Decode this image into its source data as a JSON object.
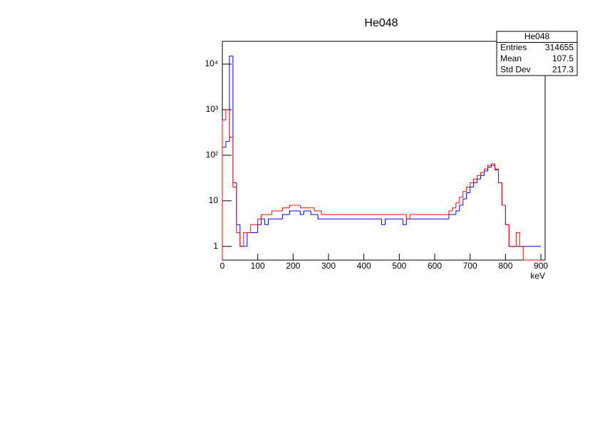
{
  "chart_data": {
    "type": "histogram",
    "title": "He048",
    "x_label": "keV",
    "log_y": true,
    "bins": [
      0,
      10,
      20,
      30,
      40,
      50,
      60,
      70,
      80,
      90,
      100,
      110,
      120,
      130,
      140,
      150,
      160,
      170,
      180,
      190,
      200,
      210,
      220,
      230,
      240,
      250,
      260,
      270,
      280,
      290,
      300,
      310,
      320,
      330,
      340,
      350,
      360,
      370,
      380,
      390,
      400,
      410,
      420,
      430,
      440,
      450,
      460,
      470,
      480,
      490,
      500,
      510,
      520,
      530,
      540,
      550,
      560,
      570,
      580,
      590,
      600,
      610,
      620,
      630,
      640,
      650,
      660,
      670,
      680,
      690,
      700,
      710,
      720,
      730,
      740,
      750,
      760,
      770,
      780,
      790,
      800,
      810,
      820,
      830,
      840,
      850,
      860,
      870,
      880,
      890,
      900
    ],
    "series": [
      {
        "color": "#0000ff",
        "values": [
          150,
          200,
          15000,
          25,
          3,
          1,
          1,
          2,
          2,
          2,
          3,
          4,
          3,
          4,
          4,
          4,
          4,
          5,
          5,
          6,
          6,
          6,
          5,
          6,
          6,
          5,
          5,
          4,
          4,
          4,
          4,
          4,
          4,
          4,
          4,
          4,
          4,
          4,
          4,
          4,
          4,
          4,
          4,
          4,
          4,
          3,
          4,
          4,
          4,
          4,
          4,
          3,
          4,
          4,
          4,
          4,
          4,
          4,
          4,
          4,
          4,
          4,
          4,
          4,
          5,
          5,
          6,
          8,
          11,
          15,
          20,
          25,
          30,
          36,
          45,
          55,
          60,
          48,
          25,
          8,
          3,
          1,
          1,
          1,
          1,
          1,
          1,
          1,
          1,
          1
        ]
      },
      {
        "color": "#ff0000",
        "values": [
          600,
          1000,
          250,
          20,
          2,
          1,
          2,
          2,
          3,
          3,
          4,
          5,
          5,
          5,
          6,
          6,
          6,
          7,
          7,
          8,
          8,
          8,
          7,
          7,
          7,
          7,
          6,
          6,
          5,
          5,
          5,
          5,
          5,
          5,
          5,
          5,
          5,
          5,
          5,
          5,
          5,
          5,
          5,
          5,
          5,
          5,
          5,
          5,
          5,
          5,
          5,
          5,
          4,
          5,
          5,
          5,
          5,
          5,
          5,
          5,
          5,
          5,
          5,
          5,
          6,
          7,
          9,
          12,
          16,
          20,
          25,
          30,
          36,
          42,
          50,
          60,
          65,
          50,
          25,
          8,
          3,
          1,
          1,
          2,
          1,
          0,
          0,
          0,
          0,
          0
        ]
      }
    ],
    "xlim": [
      0,
      912
    ],
    "xticks": [
      0,
      100,
      200,
      300,
      400,
      500,
      600,
      700,
      800,
      900
    ],
    "ylim": [
      0.5,
      31623
    ],
    "yticks": [
      1,
      10,
      {
        "value": 100,
        "label": "10²"
      },
      {
        "value": 1000,
        "label": "10³"
      },
      {
        "value": 10000,
        "label": "10⁴"
      }
    ],
    "stats_box": {
      "title": "He048",
      "rows": [
        [
          "Entries",
          314655
        ],
        [
          "Mean",
          107.5
        ],
        [
          "Std Dev",
          217.3
        ]
      ]
    }
  }
}
